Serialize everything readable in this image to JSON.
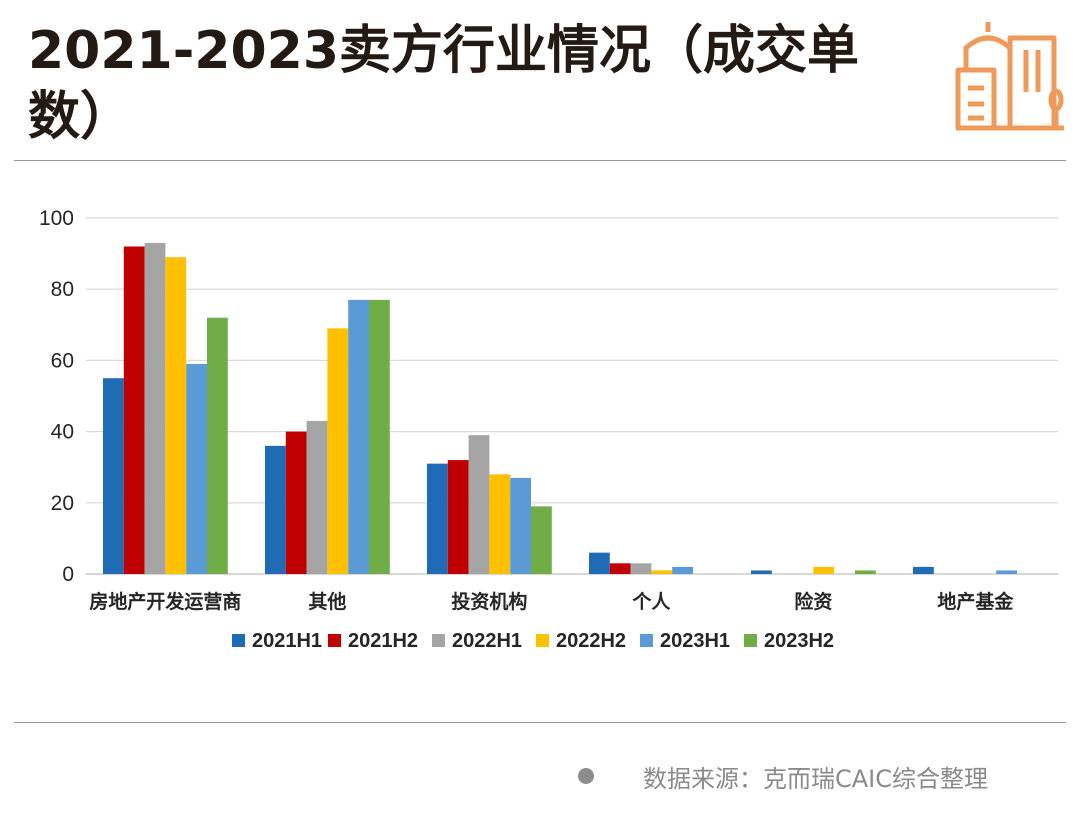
{
  "header": {
    "title": "2021-2023卖方行业情况（成交单数）"
  },
  "footer": {
    "source": "数据来源：克而瑞CAIC综合整理"
  },
  "colors": {
    "title": "#231a14",
    "logo": "#ef9a5b",
    "gridline": "#d9d9d9",
    "axis_text": "#262626",
    "source_text": "#8a8a8a"
  },
  "chart_data": {
    "type": "bar",
    "title": "2021-2023卖方行业情况（成交单数）",
    "xlabel": "",
    "ylabel": "",
    "ylim": [
      0,
      100
    ],
    "yticks": [
      0,
      20,
      40,
      60,
      80,
      100
    ],
    "grid": true,
    "legend_position": "bottom",
    "categories": [
      "房地产开发运营商",
      "其他",
      "投资机构",
      "个人",
      "险资",
      "地产基金"
    ],
    "series": [
      {
        "name": "2021H1",
        "color": "#1f6bb5",
        "values": [
          55,
          36,
          31,
          6,
          1,
          2
        ]
      },
      {
        "name": "2021H2",
        "color": "#c00000",
        "values": [
          92,
          40,
          32,
          3,
          0,
          0
        ]
      },
      {
        "name": "2022H1",
        "color": "#a5a5a5",
        "values": [
          93,
          43,
          39,
          3,
          0,
          0
        ]
      },
      {
        "name": "2022H2",
        "color": "#ffc000",
        "values": [
          89,
          69,
          28,
          1,
          2,
          0
        ]
      },
      {
        "name": "2023H1",
        "color": "#5b9bd5",
        "values": [
          59,
          77,
          27,
          2,
          0,
          1
        ]
      },
      {
        "name": "2023H2",
        "color": "#70ad47",
        "values": [
          72,
          77,
          19,
          0,
          1,
          0
        ]
      }
    ]
  }
}
